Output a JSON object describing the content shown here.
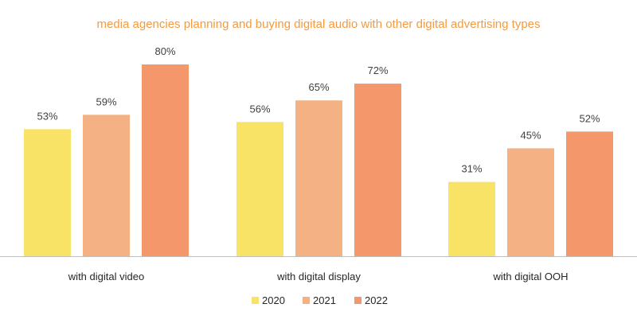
{
  "chart_data": {
    "type": "bar",
    "title": "media agencies planning and buying digital audio with other digital advertising types",
    "categories": [
      "with digital video",
      "with digital display",
      "with digital OOH"
    ],
    "series": [
      {
        "name": "2020",
        "values": [
          53,
          56,
          31
        ],
        "labels": [
          "53%",
          "56%",
          "31%"
        ],
        "color": "#F8E367"
      },
      {
        "name": "2021",
        "values": [
          59,
          65,
          45
        ],
        "labels": [
          "59%",
          "65%",
          "45%"
        ],
        "color": "#F4B183"
      },
      {
        "name": "2022",
        "values": [
          80,
          72,
          52
        ],
        "labels": [
          "80%",
          "72%",
          "52%"
        ],
        "color": "#F4976A"
      }
    ],
    "ylim": [
      0,
      80
    ],
    "grid": false,
    "legend_position": "bottom",
    "title_color": "#F59A3E",
    "axis_color": "#BFBFBF"
  }
}
